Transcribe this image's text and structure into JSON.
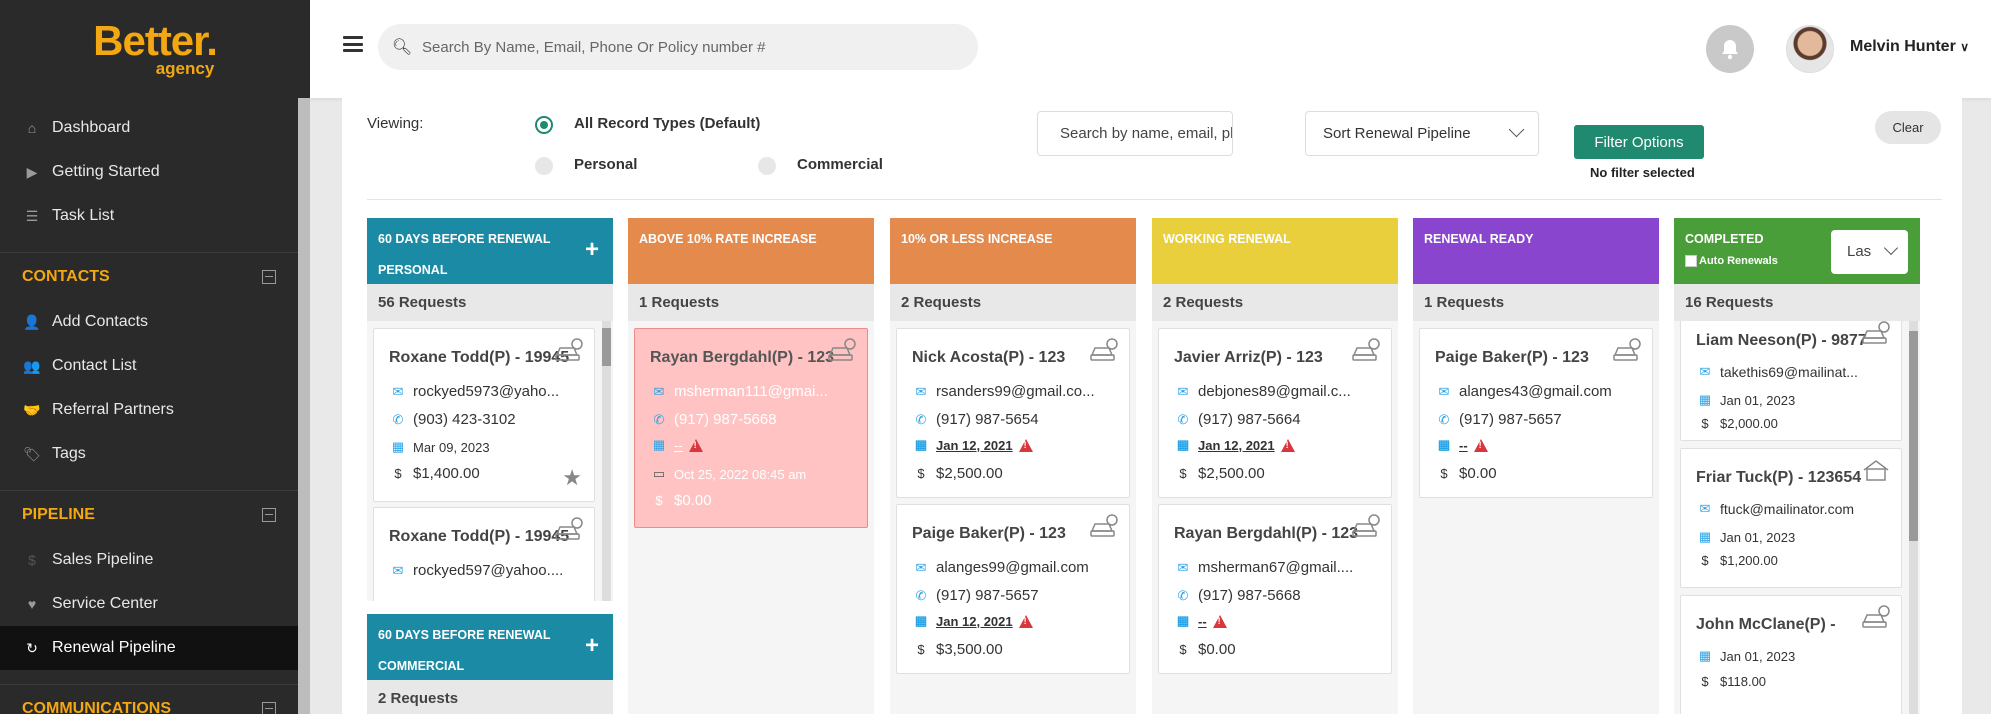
{
  "sidebar": {
    "brand": "Better.",
    "brand_sub": "agency",
    "top_items": [
      {
        "label": "Dashboard",
        "icon": "home-icon"
      },
      {
        "label": "Getting Started",
        "icon": "play-icon"
      },
      {
        "label": "Task List",
        "icon": "list-icon"
      }
    ],
    "contacts_label": "CONTACTS",
    "contacts_items": [
      {
        "label": "Add Contacts",
        "icon": "user-plus-icon"
      },
      {
        "label": "Contact List",
        "icon": "users-icon"
      },
      {
        "label": "Referral Partners",
        "icon": "handshake-icon"
      },
      {
        "label": "Tags",
        "icon": "tags-icon"
      }
    ],
    "pipeline_label": "PIPELINE",
    "pipeline_items": [
      {
        "label": "Sales Pipeline",
        "icon": "dollar-icon"
      },
      {
        "label": "Service Center",
        "icon": "heart-icon"
      },
      {
        "label": "Renewal Pipeline",
        "icon": "refresh-icon"
      }
    ],
    "communications_label": "COMMUNICATIONS"
  },
  "header": {
    "search_placeholder": "Search By Name, Email, Phone Or Policy number #",
    "user_name": "Melvin Hunter"
  },
  "filters": {
    "viewing_label": "Viewing:",
    "record_types": [
      "All Record Types (Default)",
      "Personal",
      "Commercial"
    ],
    "search_placeholder": "Search by name, email, ph",
    "sort_label": "Sort Renewal Pipeline",
    "filter_button": "Filter Options",
    "no_filter": "No filter selected",
    "clear_button": "Clear"
  },
  "colors": {
    "teal": "#1a8aa5",
    "orange": "#e48a4c",
    "yellow": "#e8cf3b",
    "purple": "#8a45cf",
    "green": "#4a9e39",
    "pink_card": "#ffc3c3"
  },
  "columns": {
    "c60p": {
      "title1": "60 DAYS BEFORE RENEWAL",
      "title2": "PERSONAL",
      "count": "56 Requests",
      "cards": [
        {
          "name": "Roxane Todd(P) - 19945",
          "email": "rockyed5973@yaho...",
          "phone": "(903) 423-3102",
          "date": "Mar 09, 2023",
          "amount": "$1,400.00"
        },
        {
          "name": "Roxane Todd(P) - 19945",
          "email": "rockyed597@yahoo...."
        }
      ]
    },
    "c60c": {
      "title1": "60 DAYS BEFORE RENEWAL",
      "title2": "COMMERCIAL",
      "count": "2 Requests"
    },
    "above": {
      "title": "ABOVE 10% RATE INCREASE",
      "count": "1 Requests",
      "cards": [
        {
          "name": "Rayan Bergdahl(P) - 123",
          "email": "msherman111@gmai...",
          "phone": "(917) 987-5668",
          "date": "--",
          "followup": "Oct 25, 2022 08:45 am",
          "amount": "$0.00"
        }
      ]
    },
    "less": {
      "title": "10% OR LESS INCREASE",
      "count": "2 Requests",
      "cards": [
        {
          "name": "Nick Acosta(P) - 123",
          "email": "rsanders99@gmail.co...",
          "phone": "(917) 987-5654",
          "date": "Jan 12, 2021",
          "amount": "$2,500.00"
        },
        {
          "name": "Paige Baker(P) - 123",
          "email": "alanges99@gmail.com",
          "phone": "(917) 987-5657",
          "date": "Jan 12, 2021",
          "amount": "$3,500.00"
        }
      ]
    },
    "working": {
      "title": "WORKING RENEWAL",
      "count": "2 Requests",
      "cards": [
        {
          "name": "Javier Arriz(P) - 123",
          "email": "debjones89@gmail.c...",
          "phone": "(917) 987-5664",
          "date": "Jan 12, 2021",
          "amount": "$2,500.00"
        },
        {
          "name": "Rayan Bergdahl(P) - 123",
          "email": "msherman67@gmail....",
          "phone": "(917) 987-5668",
          "date": "--",
          "amount": "$0.00"
        }
      ]
    },
    "ready": {
      "title": "RENEWAL READY",
      "count": "1 Requests",
      "cards": [
        {
          "name": "Paige Baker(P) - 123",
          "email": "alanges43@gmail.com",
          "phone": "(917) 987-5657",
          "date": "--",
          "amount": "$0.00"
        }
      ]
    },
    "completed": {
      "title": "COMPLETED",
      "auto_renewals": "Auto Renewals",
      "select_value": "Las",
      "count": "16 Requests",
      "cards": [
        {
          "name": "Liam Neeson(P) - 9877",
          "email": "takethis69@mailinat...",
          "date": "Jan 01, 2023",
          "amount": "$2,000.00"
        },
        {
          "name": "Friar Tuck(P) - 123654",
          "email": "ftuck@mailinator.com",
          "date": "Jan 01, 2023",
          "amount": "$1,200.00"
        },
        {
          "name": "John McClane(P) -",
          "date": "Jan 01, 2023",
          "amount": "$118.00"
        }
      ]
    }
  }
}
